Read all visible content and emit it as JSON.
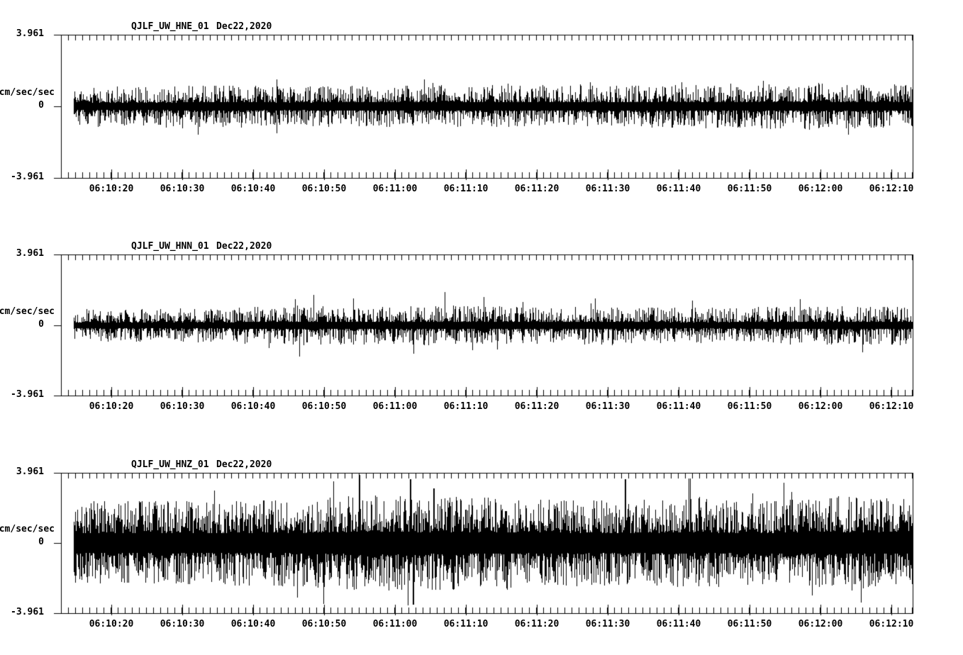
{
  "figure": {
    "background_color": "#ffffff",
    "trace_color": "#000000",
    "axis_color": "#000000"
  },
  "chart_data": {
    "type": "line",
    "subtype": "seismogram",
    "date": "Dec22,2020",
    "ylabel": "cm/sec/sec",
    "ylim": [
      -3.961,
      3.961
    ],
    "y_tick_labels": [
      "3.961",
      "0",
      "-3.961"
    ],
    "x_axis": {
      "start_time": "06:10:13",
      "end_time": "06:12:13",
      "major_tick_interval_s": 10,
      "minor_tick_interval_s": 1,
      "tick_labels": [
        "06:10:20",
        "06:10:30",
        "06:10:40",
        "06:10:50",
        "06:11:00",
        "06:11:10",
        "06:11:20",
        "06:11:30",
        "06:11:40",
        "06:11:50",
        "06:12:00",
        "06:12:10"
      ]
    },
    "panels": [
      {
        "title": "QJLF_UW_HNE_01",
        "date": "Dec22,2020",
        "channel": "HNE",
        "ylabel_max": "3.961",
        "ylabel_unit": "cm/sec/sec",
        "ylabel_zero": "0",
        "ylabel_min": "-3.961",
        "noise": {
          "seed": 11,
          "amp_min": 0.22,
          "amp_range": 0.95,
          "power": 2.1,
          "spike_p": 0.008,
          "spike_extra": 0.5,
          "envelope": [
            0.92,
            0.96,
            1.0,
            0.96,
            1.0,
            1.02,
            1.0,
            0.98,
            1.02,
            1.08,
            1.1,
            1.06
          ],
          "spikes": [
            {
              "s": 30.4,
              "a": -1.5
            },
            {
              "s": 52.4,
              "a": 1.3
            },
            {
              "s": 63.0,
              "a": 1.25
            },
            {
              "s": 73.2,
              "a": 1.2
            },
            {
              "s": 87.5,
              "a": 1.35
            },
            {
              "s": 99.0,
              "a": 1.4
            },
            {
              "s": 106.8,
              "a": 1.3
            }
          ]
        }
      },
      {
        "title": "QJLF_UW_HNN_01",
        "date": "Dec22,2020",
        "channel": "HNN",
        "ylabel_max": "3.961",
        "ylabel_unit": "cm/sec/sec",
        "ylabel_zero": "0",
        "ylabel_min": "-3.961",
        "noise": {
          "seed": 22,
          "amp_min": 0.18,
          "amp_range": 0.85,
          "power": 2.2,
          "spike_p": 0.01,
          "spike_extra": 0.6,
          "envelope": [
            0.88,
            0.9,
            0.96,
            1.08,
            1.04,
            1.1,
            1.0,
            1.04,
            0.95,
            1.0,
            1.08,
            1.02
          ],
          "spikes": [
            {
              "s": 33.0,
              "a": 1.45
            },
            {
              "s": 41.2,
              "a": 1.5
            },
            {
              "s": 49.7,
              "a": -1.6
            },
            {
              "s": 54.1,
              "a": 1.85
            },
            {
              "s": 61.5,
              "a": -1.35
            },
            {
              "s": 75.3,
              "a": 1.5
            },
            {
              "s": 89.0,
              "a": 1.4
            },
            {
              "s": 104.2,
              "a": 1.45
            },
            {
              "s": 113.0,
              "a": -1.5
            }
          ]
        }
      },
      {
        "title": "QJLF_UW_HNZ_01",
        "date": "Dec22,2020",
        "channel": "HNZ",
        "ylabel_max": "3.961",
        "ylabel_unit": "cm/sec/sec",
        "ylabel_zero": "0",
        "ylabel_min": "-3.961",
        "noise": {
          "seed": 33,
          "amp_min": 0.55,
          "amp_range": 1.85,
          "power": 1.7,
          "spike_p": 0.015,
          "spike_extra": 1.1,
          "envelope": [
            0.98,
            1.0,
            1.0,
            1.04,
            1.14,
            1.1,
            1.04,
            1.0,
            1.06,
            1.0,
            1.1,
            1.06
          ],
          "spikes": [
            {
              "s": 42.0,
              "a": 3.85
            },
            {
              "s": 44.5,
              "a": 2.6
            },
            {
              "s": 49.2,
              "a": 3.6
            },
            {
              "s": 49.6,
              "a": -3.5
            },
            {
              "s": 52.5,
              "a": 3.1
            },
            {
              "s": 55.2,
              "a": -2.6
            },
            {
              "s": 79.5,
              "a": 3.6
            },
            {
              "s": 90.0,
              "a": 2.6
            },
            {
              "s": 97.5,
              "a": 2.8
            },
            {
              "s": 103.0,
              "a": 2.9
            },
            {
              "s": 111.5,
              "a": -2.7
            }
          ]
        }
      }
    ]
  }
}
